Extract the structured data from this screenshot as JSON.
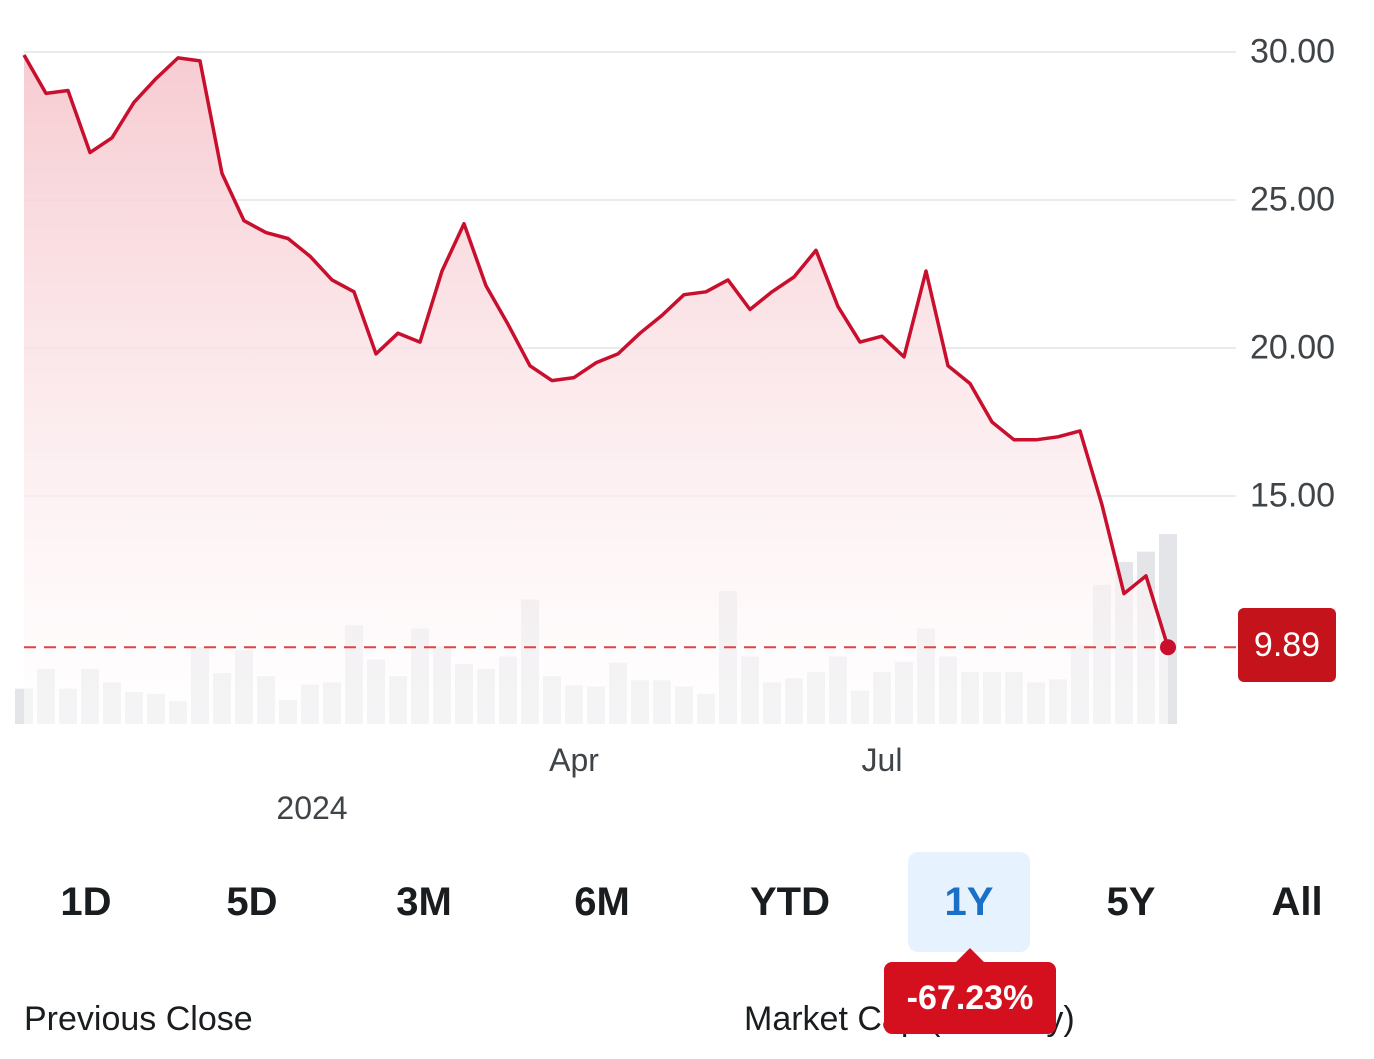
{
  "chart_data": {
    "type": "line",
    "ylim": [
      8,
      30
    ],
    "y_ticks": [
      "30.00",
      "25.00",
      "20.00",
      "15.00",
      "10.00"
    ],
    "x_tick_labels": [
      {
        "label": "Apr",
        "index": 25
      },
      {
        "label": "Jul",
        "index": 39
      }
    ],
    "year_label": "2024",
    "prices": [
      29.9,
      28.6,
      28.7,
      26.6,
      27.1,
      28.3,
      29.1,
      29.8,
      29.7,
      25.9,
      24.3,
      23.9,
      23.7,
      23.1,
      22.3,
      21.9,
      19.8,
      20.5,
      20.2,
      22.6,
      24.2,
      22.1,
      20.8,
      19.4,
      18.9,
      19.0,
      19.5,
      19.8,
      20.5,
      21.1,
      21.8,
      21.9,
      22.3,
      21.3,
      21.9,
      22.4,
      23.3,
      21.4,
      20.2,
      20.4,
      19.7,
      22.6,
      19.4,
      18.8,
      17.5,
      16.9,
      16.9,
      17.0,
      17.2,
      14.7,
      11.7,
      12.3,
      9.89
    ],
    "volume": [
      34,
      53,
      34,
      53,
      40,
      31,
      29,
      22,
      74,
      49,
      71,
      46,
      23,
      38,
      40,
      95,
      62,
      46,
      92,
      75,
      58,
      53,
      65,
      120,
      46,
      37,
      36,
      59,
      42,
      42,
      36,
      29,
      128,
      65,
      40,
      44,
      50,
      65,
      32,
      50,
      60,
      92,
      65,
      50,
      50,
      50,
      40,
      43,
      76,
      134,
      156,
      166,
      183
    ],
    "previous_close_line": 9.89,
    "current_price": "9.89",
    "series_color": "#c8102e",
    "fill_color": "#f6c9cf",
    "reference_line_color": "#d44"
  },
  "ranges": [
    {
      "label": "1D",
      "active": false
    },
    {
      "label": "5D",
      "active": false
    },
    {
      "label": "3M",
      "active": false
    },
    {
      "label": "6M",
      "active": false
    },
    {
      "label": "YTD",
      "active": false
    },
    {
      "label": "1Y",
      "active": true
    },
    {
      "label": "5Y",
      "active": false
    },
    {
      "label": "All",
      "active": false
    }
  ],
  "change_badge": "-67.23%",
  "stats": {
    "previous_close_label": "Previous Close",
    "market_cap_label": "Market Cap (Intraday)"
  }
}
